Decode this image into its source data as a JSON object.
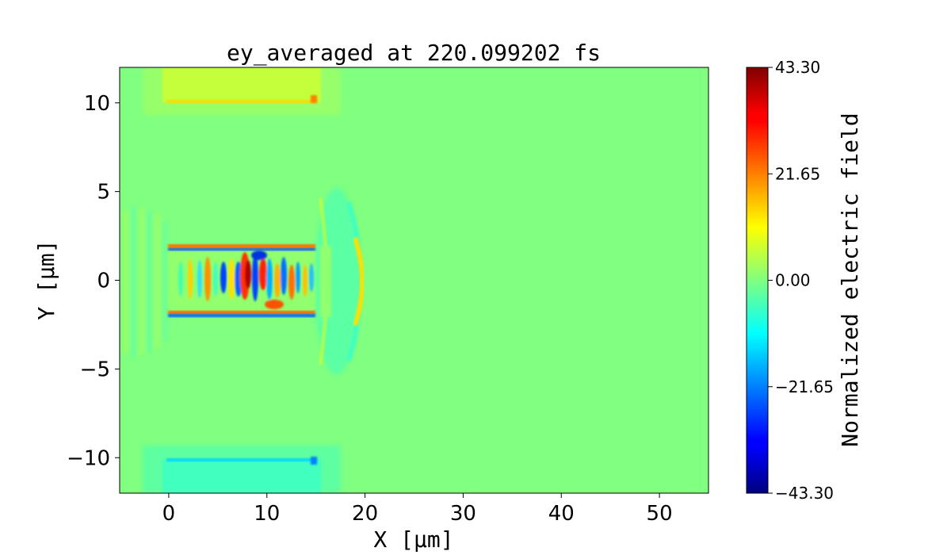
{
  "chart_data": {
    "type": "heatmap",
    "title": "ey_averaged at 220.099202 fs",
    "xlabel": "X [μm]",
    "ylabel": "Y [μm]",
    "xlim": [
      -5,
      55
    ],
    "ylim": [
      -12,
      12
    ],
    "x_ticks": [
      0,
      10,
      20,
      30,
      40,
      50
    ],
    "x_tick_labels": [
      "0",
      "10",
      "20",
      "30",
      "40",
      "50"
    ],
    "y_ticks": [
      10,
      5,
      0,
      -5,
      -10
    ],
    "y_tick_labels": [
      "10",
      "5",
      "0",
      "−5",
      "−10"
    ],
    "colorbar": {
      "label": "Normalized electric field",
      "colormap": "jet",
      "vmin": -43.3,
      "vmax": 43.3,
      "ticks": [
        43.3,
        21.65,
        0.0,
        -21.65,
        -43.3
      ],
      "tick_labels": [
        "43.30",
        "21.65",
        "0.00",
        "−21.65",
        "−43.30"
      ]
    },
    "background_value": 0.0,
    "colors": {
      "background_field": "#80ff80"
    }
  }
}
